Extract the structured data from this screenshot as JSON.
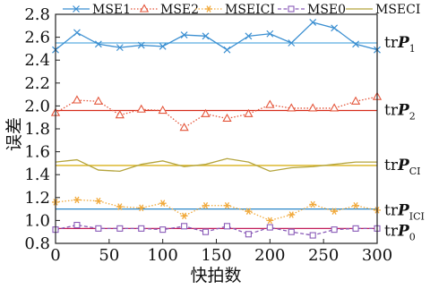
{
  "chart_data": {
    "type": "line",
    "xlabel": "快拍数",
    "ylabel": "误差",
    "xlim": [
      0,
      300
    ],
    "ylim": [
      0.8,
      2.8
    ],
    "xticks": [
      "0",
      "50",
      "100",
      "150",
      "200",
      "250",
      "300"
    ],
    "yticks": [
      "0.8",
      "1.0",
      "1.2",
      "1.4",
      "1.6",
      "1.8",
      "2.0",
      "2.2",
      "2.4",
      "2.6",
      "2.8"
    ],
    "legend_position": "top",
    "x": [
      0,
      20,
      40,
      60,
      80,
      100,
      120,
      140,
      160,
      180,
      200,
      220,
      240,
      260,
      280,
      300
    ],
    "series": [
      {
        "name": "MSE1",
        "color": "#3b8fd1",
        "marker": "x",
        "dash": "solid",
        "values": [
          2.49,
          2.64,
          2.54,
          2.51,
          2.53,
          2.52,
          2.62,
          2.61,
          2.49,
          2.61,
          2.63,
          2.55,
          2.73,
          2.68,
          2.54,
          2.49
        ]
      },
      {
        "name": "MSE2",
        "color": "#e4553a",
        "marker": "triangle",
        "dash": "dotted",
        "values": [
          1.94,
          2.05,
          2.04,
          1.92,
          1.97,
          1.96,
          1.81,
          1.93,
          1.89,
          1.93,
          2.01,
          1.98,
          1.98,
          1.98,
          2.04,
          2.08
        ]
      },
      {
        "name": "MSEICI",
        "color": "#f1a93a",
        "marker": "asterisk",
        "dash": "dotted",
        "values": [
          1.16,
          1.18,
          1.17,
          1.12,
          1.11,
          1.15,
          1.04,
          1.13,
          1.13,
          1.08,
          1.0,
          1.05,
          1.14,
          1.08,
          1.13,
          1.09
        ]
      },
      {
        "name": "MSE0",
        "color": "#8a5bb8",
        "marker": "square",
        "dash": "dashed",
        "values": [
          0.92,
          0.96,
          0.93,
          0.93,
          0.93,
          0.92,
          0.95,
          0.9,
          0.95,
          0.88,
          0.94,
          0.9,
          0.87,
          0.92,
          0.93,
          0.93
        ]
      },
      {
        "name": "MSECI",
        "color": "#b4a43c",
        "marker": "none",
        "dash": "solid",
        "values": [
          1.51,
          1.53,
          1.44,
          1.43,
          1.49,
          1.52,
          1.47,
          1.49,
          1.54,
          1.51,
          1.43,
          1.46,
          1.47,
          1.49,
          1.51,
          1.51
        ]
      }
    ],
    "reference_lines": [
      {
        "y": 2.55,
        "color": "#5aaee0",
        "label_main": "tr",
        "label_bold": "P",
        "label_sub": "1"
      },
      {
        "y": 1.96,
        "color": "#d62c1a",
        "label_main": "tr",
        "label_bold": "P",
        "label_sub": "2"
      },
      {
        "y": 1.48,
        "color": "#d9b21c",
        "label_main": "tr",
        "label_bold": "P",
        "label_sub": "CI"
      },
      {
        "y": 1.1,
        "color": "#2a86c7",
        "label_main": "tr",
        "label_bold": "P",
        "label_sub": "ICI"
      },
      {
        "y": 0.93,
        "color": "#c21f5a",
        "label_main": "tr",
        "label_bold": "P",
        "label_sub": "0"
      }
    ]
  }
}
